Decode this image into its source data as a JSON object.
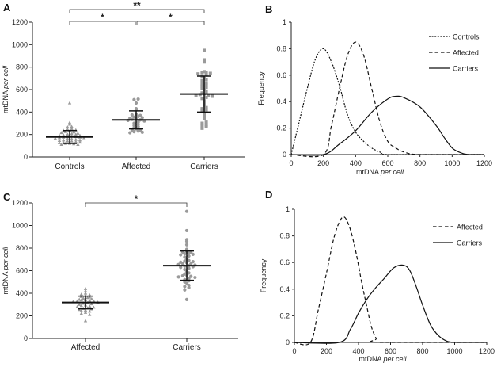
{
  "colors": {
    "axis": "#222222",
    "marker": "#9a9a9a",
    "line": "#111111"
  },
  "chart_data": [
    {
      "panel": "A",
      "type": "scatter",
      "ylabel_prefix": "mtDNA",
      "ylabel_italic": "per cell",
      "ylim": [
        0,
        1200
      ],
      "yticks": [
        "0",
        "200",
        "400",
        "600",
        "800",
        "1000",
        "1200"
      ],
      "categories": [
        "Controls",
        "Affected",
        "Carriers"
      ],
      "series": [
        {
          "name": "Controls",
          "marker": "triangle",
          "mean": 178,
          "sd_low": 120,
          "sd_high": 235,
          "values": [
            480,
            305,
            290,
            270,
            265,
            250,
            245,
            240,
            235,
            230,
            225,
            220,
            215,
            210,
            205,
            200,
            200,
            195,
            190,
            190,
            185,
            180,
            180,
            175,
            175,
            170,
            170,
            165,
            160,
            160,
            155,
            150,
            150,
            145,
            140,
            140,
            135,
            130,
            130,
            125,
            120,
            120,
            115,
            110,
            110
          ]
        },
        {
          "name": "Affected",
          "marker": "circle",
          "mean": 330,
          "sd_low": 250,
          "sd_high": 410,
          "values": [
            515,
            510,
            480,
            430,
            420,
            380,
            375,
            370,
            360,
            355,
            350,
            345,
            340,
            335,
            330,
            325,
            320,
            310,
            300,
            290,
            280,
            270,
            260,
            250,
            240,
            235,
            230,
            225,
            220,
            215
          ]
        },
        {
          "name": "Carriers",
          "marker": "square",
          "mean": 560,
          "sd_low": 400,
          "sd_high": 720,
          "values": [
            950,
            865,
            845,
            760,
            755,
            750,
            745,
            740,
            730,
            720,
            700,
            690,
            680,
            660,
            650,
            640,
            630,
            620,
            610,
            600,
            580,
            570,
            560,
            555,
            550,
            545,
            540,
            530,
            520,
            500,
            480,
            460,
            440,
            430,
            420,
            410,
            380,
            360,
            340,
            310,
            300,
            285,
            280,
            270,
            255
          ]
        }
      ],
      "significance": [
        {
          "label": "**",
          "from": 0,
          "to": 2,
          "level": 2
        },
        {
          "label": "*",
          "from": 0,
          "to": 1,
          "level": 1
        },
        {
          "label": "*",
          "from": 1,
          "to": 2,
          "level": 1
        }
      ]
    },
    {
      "panel": "B",
      "type": "line",
      "xlabel_prefix": "mtDNA",
      "xlabel_italic": "per cell",
      "ylabel": "Frequency",
      "xlim": [
        0,
        1200
      ],
      "ylim": [
        0,
        1
      ],
      "xticks": [
        "0",
        "200",
        "400",
        "600",
        "800",
        "1000",
        "1200"
      ],
      "yticks": [
        "0",
        "0.2",
        "0.4",
        "0.6",
        "0.8",
        "1"
      ],
      "legend_position": "top-right",
      "series": [
        {
          "name": "Controls",
          "style": "dotted",
          "x": [
            0,
            50,
            100,
            150,
            200,
            250,
            300,
            350,
            400,
            450,
            500,
            560,
            620,
            1200
          ],
          "y": [
            0,
            0.25,
            0.5,
            0.72,
            0.8,
            0.7,
            0.52,
            0.3,
            0.17,
            0.1,
            0.05,
            0.015,
            0,
            0
          ]
        },
        {
          "name": "Affected",
          "style": "dashed",
          "x": [
            0,
            200,
            250,
            300,
            350,
            400,
            450,
            500,
            550,
            600,
            650,
            700,
            800,
            1200
          ],
          "y": [
            0,
            0,
            0.22,
            0.5,
            0.75,
            0.85,
            0.75,
            0.5,
            0.25,
            0.1,
            0.05,
            0.02,
            0,
            0
          ]
        },
        {
          "name": "Carriers",
          "style": "solid",
          "x": [
            0,
            200,
            300,
            400,
            500,
            600,
            650,
            700,
            800,
            900,
            950,
            1000,
            1050,
            1100,
            1200
          ],
          "y": [
            0,
            0,
            0.08,
            0.18,
            0.32,
            0.42,
            0.44,
            0.43,
            0.36,
            0.22,
            0.13,
            0.05,
            0.015,
            0,
            0
          ]
        }
      ]
    },
    {
      "panel": "C",
      "type": "scatter",
      "ylabel_prefix": "mtDNA",
      "ylabel_italic": "per cell",
      "ylim": [
        0,
        1200
      ],
      "yticks": [
        "0",
        "200",
        "400",
        "600",
        "800",
        "1000",
        "1200"
      ],
      "categories": [
        "Affected",
        "Carriers"
      ],
      "series": [
        {
          "name": "Affected",
          "marker": "triangle",
          "mean": 318,
          "sd_low": 262,
          "sd_high": 375,
          "values": [
            440,
            420,
            400,
            390,
            385,
            380,
            370,
            365,
            360,
            355,
            350,
            345,
            340,
            340,
            335,
            330,
            330,
            325,
            320,
            315,
            310,
            305,
            300,
            295,
            290,
            285,
            280,
            275,
            270,
            265,
            260,
            255,
            250,
            245,
            240,
            230,
            220,
            210,
            155
          ]
        },
        {
          "name": "Carriers",
          "marker": "circle",
          "mean": 645,
          "sd_low": 515,
          "sd_high": 775,
          "values": [
            1125,
            955,
            875,
            860,
            830,
            790,
            770,
            765,
            760,
            755,
            750,
            745,
            740,
            730,
            720,
            700,
            690,
            685,
            680,
            675,
            670,
            665,
            660,
            655,
            650,
            645,
            640,
            635,
            630,
            620,
            610,
            590,
            580,
            570,
            560,
            555,
            550,
            545,
            540,
            530,
            520,
            510,
            500,
            490,
            470,
            460,
            450,
            430,
            345
          ]
        }
      ],
      "significance": [
        {
          "label": "*",
          "from": 0,
          "to": 1,
          "level": 1
        }
      ]
    },
    {
      "panel": "D",
      "type": "line",
      "xlabel_prefix": "mtDNA",
      "xlabel_italic": "per cell",
      "ylabel": "Frequency",
      "xlim": [
        0,
        1200
      ],
      "ylim": [
        0,
        1
      ],
      "xticks": [
        "0",
        "200",
        "400",
        "600",
        "800",
        "1000",
        "1200"
      ],
      "yticks": [
        "0",
        "0.2",
        "0.4",
        "0.6",
        "0.8",
        "1"
      ],
      "legend_position": "top-right",
      "series": [
        {
          "name": "Affected",
          "style": "dashed",
          "x": [
            0,
            100,
            150,
            200,
            250,
            300,
            340,
            380,
            420,
            450,
            480,
            510,
            530,
            1200
          ],
          "y": [
            0,
            0,
            0.25,
            0.52,
            0.8,
            0.94,
            0.88,
            0.7,
            0.45,
            0.28,
            0.12,
            0.03,
            0,
            0
          ]
        },
        {
          "name": "Carriers",
          "style": "solid",
          "x": [
            0,
            280,
            350,
            400,
            450,
            500,
            560,
            620,
            680,
            720,
            760,
            800,
            850,
            900,
            950,
            1000,
            1100,
            1200
          ],
          "y": [
            0,
            0,
            0.1,
            0.22,
            0.32,
            0.4,
            0.48,
            0.56,
            0.58,
            0.54,
            0.42,
            0.28,
            0.13,
            0.05,
            0.01,
            0,
            0,
            0
          ]
        }
      ]
    }
  ]
}
